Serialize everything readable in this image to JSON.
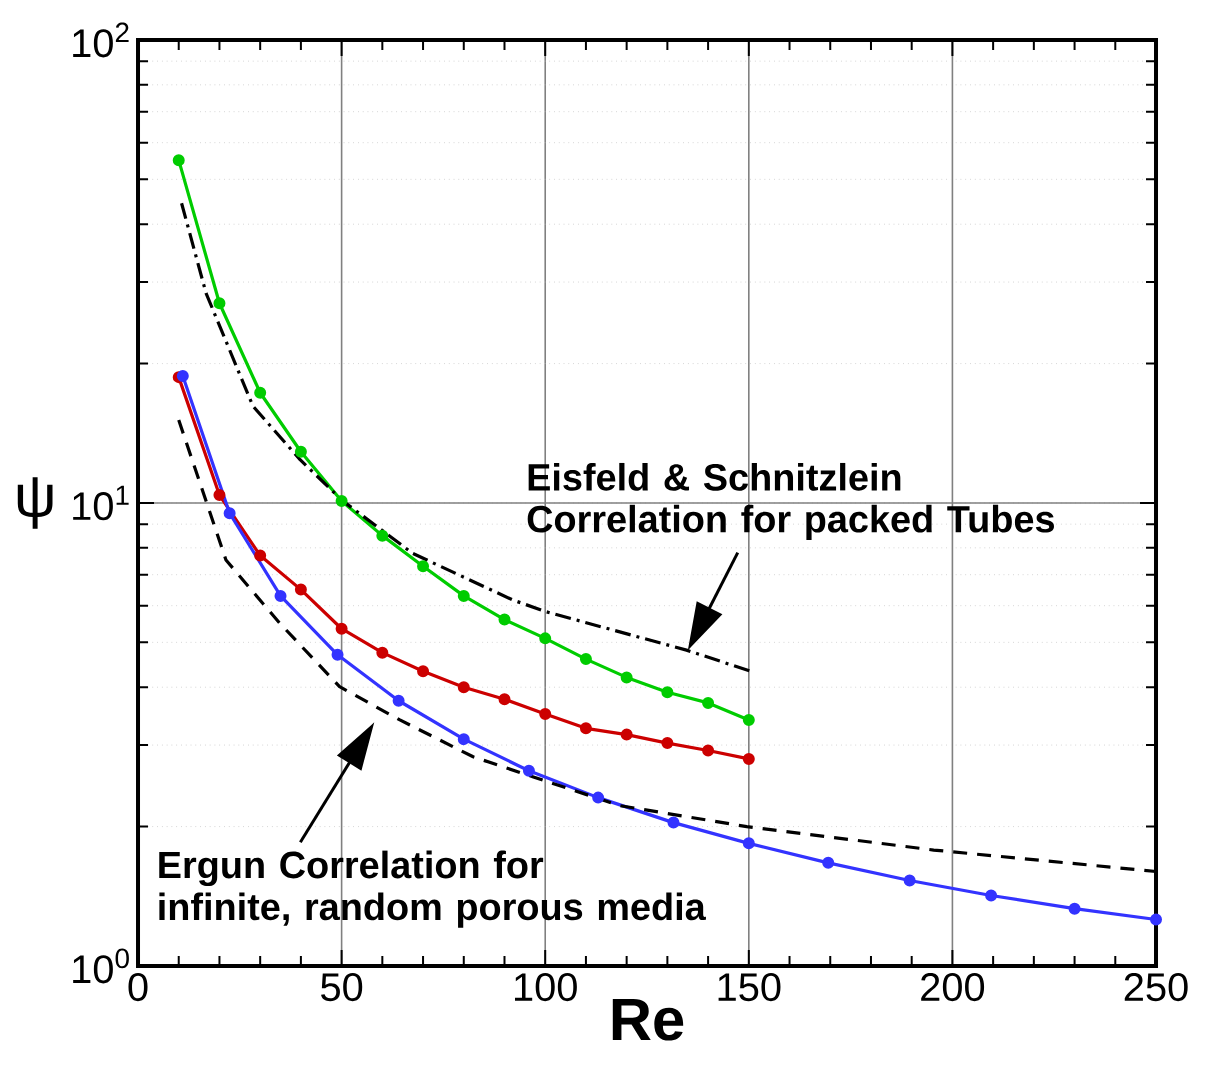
{
  "chart_data": {
    "type": "line",
    "xlabel": "Re",
    "ylabel": "ψ",
    "xlim": [
      0,
      250
    ],
    "ylim": [
      1,
      100
    ],
    "log": "y",
    "xticks": [
      0,
      50,
      100,
      150,
      200,
      250
    ],
    "yticks": [
      {
        "value": 1,
        "label": "10$^{0}$"
      },
      {
        "value": 10,
        "label": "10$^{1}$"
      },
      {
        "value": 100,
        "label": "10$^{2}$"
      }
    ],
    "grid": true,
    "marker": "circle",
    "series": [
      {
        "color": "#00cc00",
        "x": [
          10,
          20,
          30,
          40,
          50,
          60,
          70,
          80,
          90,
          100,
          110,
          120,
          130,
          140,
          150
        ],
        "values": [
          55,
          27,
          17.3,
          12.9,
          10.1,
          8.5,
          7.3,
          6.3,
          5.6,
          5.1,
          4.6,
          4.2,
          3.9,
          3.7,
          3.4
        ]
      },
      {
        "color": "#cc0000",
        "x": [
          10,
          20,
          30,
          40,
          50,
          60,
          70,
          80,
          90,
          100,
          110,
          120,
          130,
          140,
          150
        ],
        "values": [
          18.7,
          10.4,
          7.7,
          6.5,
          5.35,
          4.75,
          4.33,
          4.0,
          3.77,
          3.5,
          3.26,
          3.16,
          3.03,
          2.92,
          2.8
        ]
      },
      {
        "color": "#3333ff",
        "x": [
          11,
          22.5,
          35,
          49,
          64,
          80,
          96,
          113,
          131.5,
          150,
          169.5,
          189.5,
          209.5,
          230,
          250
        ],
        "values": [
          18.8,
          9.5,
          6.3,
          4.7,
          3.74,
          3.09,
          2.64,
          2.31,
          2.04,
          1.84,
          1.67,
          1.53,
          1.42,
          1.33,
          1.26
        ]
      },
      {
        "color": "#000000",
        "marker": "none",
        "line_style": "dashed",
        "x": [
          10,
          21.6,
          34.8,
          49.5,
          64.3,
          82.3,
          97.1,
          118.3,
          149.5,
          195.4,
          250
        ],
        "values": [
          15.1,
          7.53,
          5.5,
          4.01,
          3.4,
          2.83,
          2.56,
          2.22,
          2.0,
          1.78,
          1.6
        ]
      },
      {
        "color": "#000000",
        "marker": "none",
        "line_style": "dashdot",
        "x": [
          10.7,
          16.7,
          28.2,
          39.8,
          50.3,
          67.5,
          92.1,
          100.3,
          134.7,
          150.5
        ],
        "values": [
          44.4,
          28.4,
          16.2,
          12.4,
          10.1,
          7.78,
          6.17,
          5.82,
          4.81,
          4.33
        ]
      }
    ],
    "annotations": [
      {
        "text": "Eisfeld & Schnitzlein Correlation for packed Tubes",
        "x": 135,
        "y": 4.8
      },
      "Ergun Correlation for infinite, random porous media"
    ]
  }
}
